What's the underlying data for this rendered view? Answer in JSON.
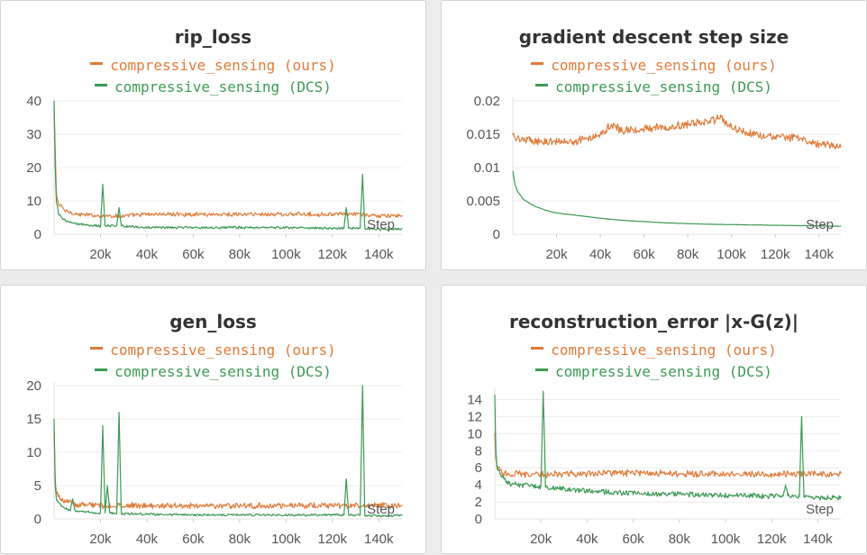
{
  "colors": {
    "ours": "#e07b39",
    "dcs": "#3c9a55",
    "grid": "#ececec",
    "axis": "#e0e0e0"
  },
  "panels": [
    {
      "title": "rip_loss",
      "legend": [
        "compressive_sensing (ours)",
        "compressive_sensing (DCS)"
      ]
    },
    {
      "title": "gradient descent step size",
      "legend": [
        "compressive_sensing (ours)",
        "compressive_sensing (DCS)"
      ]
    },
    {
      "title": "gen_loss",
      "legend": [
        "compressive_sensing (ours)",
        "compressive_sensing (DCS)"
      ]
    },
    {
      "title": "reconstruction_error |x-G(z)|",
      "legend": [
        "compressive_sensing (ours)",
        "compressive_sensing (DCS)"
      ]
    }
  ],
  "chart_data": [
    {
      "type": "line",
      "title": "rip_loss",
      "xlabel": "Step",
      "x_tick_labels": [
        "20k",
        "40k",
        "60k",
        "80k",
        "100k",
        "120k",
        "140k"
      ],
      "x_ticks": [
        20000,
        40000,
        60000,
        80000,
        100000,
        120000,
        140000
      ],
      "y_tick_labels": [
        "0",
        "10",
        "20",
        "30",
        "40"
      ],
      "y_ticks": [
        0,
        10,
        20,
        30,
        40
      ],
      "xlim": [
        0,
        150000
      ],
      "ylim": [
        0,
        40
      ],
      "grid": true,
      "legend_position": "top",
      "series": [
        {
          "name": "compressive_sensing (ours)",
          "x": [
            0,
            1000,
            2000,
            5000,
            10000,
            20000,
            30000,
            40000,
            50000,
            60000,
            70000,
            80000,
            90000,
            100000,
            110000,
            120000,
            130000,
            140000,
            150000
          ],
          "y": [
            38,
            12,
            9,
            7,
            6,
            5.5,
            5.5,
            6,
            6,
            6,
            6,
            6,
            6,
            6,
            6,
            6,
            6,
            5.5,
            5.5
          ],
          "noise": 0.7
        },
        {
          "name": "compressive_sensing (DCS)",
          "x": [
            0,
            500,
            1000,
            2000,
            5000,
            10000,
            20000,
            21000,
            22000,
            27000,
            28000,
            29000,
            40000,
            60000,
            80000,
            100000,
            120000,
            125000,
            126000,
            127000,
            132000,
            133000,
            134000,
            140000,
            150000
          ],
          "y": [
            40,
            20,
            10,
            6,
            4,
            3,
            2.5,
            15,
            2.5,
            2.5,
            8,
            2.5,
            2,
            2,
            2,
            2,
            1.8,
            1.8,
            8,
            1.8,
            1.8,
            18,
            1.8,
            1.6,
            1.5
          ],
          "noise": 0.4
        }
      ]
    },
    {
      "type": "line",
      "title": "gradient descent step size",
      "xlabel": "Step",
      "x_tick_labels": [
        "20k",
        "40k",
        "60k",
        "80k",
        "100k",
        "120k",
        "140k"
      ],
      "x_ticks": [
        20000,
        40000,
        60000,
        80000,
        100000,
        120000,
        140000
      ],
      "y_tick_labels": [
        "0",
        "0.005",
        "0.01",
        "0.015",
        "0.02"
      ],
      "y_ticks": [
        0,
        0.005,
        0.01,
        0.015,
        0.02
      ],
      "xlim": [
        0,
        150000
      ],
      "ylim": [
        0,
        0.02
      ],
      "grid": true,
      "legend_position": "top",
      "series": [
        {
          "name": "compressive_sensing (ours)",
          "x": [
            0,
            1000,
            5000,
            10000,
            20000,
            30000,
            40000,
            45000,
            50000,
            60000,
            70000,
            80000,
            90000,
            95000,
            100000,
            110000,
            120000,
            130000,
            140000,
            150000
          ],
          "y": [
            0.015,
            0.0145,
            0.0142,
            0.014,
            0.0138,
            0.014,
            0.015,
            0.0165,
            0.0155,
            0.0158,
            0.016,
            0.0165,
            0.017,
            0.0175,
            0.016,
            0.015,
            0.0145,
            0.0145,
            0.0135,
            0.013
          ],
          "noise": 0.0007
        },
        {
          "name": "compressive_sensing (DCS)",
          "x": [
            0,
            1000,
            2000,
            5000,
            10000,
            15000,
            20000,
            30000,
            40000,
            50000,
            60000,
            70000,
            80000,
            90000,
            100000,
            110000,
            120000,
            130000,
            140000,
            150000
          ],
          "y": [
            0.0095,
            0.0075,
            0.0065,
            0.0052,
            0.0042,
            0.0036,
            0.0032,
            0.0028,
            0.0024,
            0.0021,
            0.0019,
            0.0017,
            0.0016,
            0.0015,
            0.00145,
            0.0014,
            0.00135,
            0.0013,
            0.00125,
            0.0012
          ],
          "noise": 3e-05
        }
      ]
    },
    {
      "type": "line",
      "title": "gen_loss",
      "xlabel": "Step",
      "x_tick_labels": [
        "20k",
        "40k",
        "60k",
        "80k",
        "100k",
        "120k",
        "140k"
      ],
      "x_ticks": [
        20000,
        40000,
        60000,
        80000,
        100000,
        120000,
        140000
      ],
      "y_tick_labels": [
        "0",
        "5",
        "10",
        "15",
        "20"
      ],
      "y_ticks": [
        0,
        5,
        10,
        15,
        20
      ],
      "xlim": [
        0,
        150000
      ],
      "ylim": [
        0,
        20
      ],
      "grid": true,
      "legend_position": "top",
      "series": [
        {
          "name": "compressive_sensing (ours)",
          "x": [
            0,
            500,
            1000,
            3000,
            6000,
            10000,
            20000,
            40000,
            60000,
            80000,
            100000,
            120000,
            140000,
            150000
          ],
          "y": [
            13,
            6,
            4,
            3,
            2.5,
            2.2,
            2,
            2,
            2,
            2,
            2,
            2,
            2,
            2
          ],
          "noise": 0.5
        },
        {
          "name": "compressive_sensing (DCS)",
          "x": [
            0,
            500,
            1000,
            3000,
            7000,
            8000,
            9000,
            15000,
            20000,
            21000,
            22000,
            23000,
            24000,
            27000,
            28000,
            29000,
            40000,
            60000,
            80000,
            100000,
            120000,
            125000,
            126000,
            127000,
            132000,
            133000,
            134000,
            140000,
            150000
          ],
          "y": [
            15,
            5,
            3,
            2,
            1.2,
            3,
            1.2,
            1,
            0.9,
            14,
            0.9,
            5,
            0.9,
            0.8,
            16,
            0.8,
            0.7,
            0.6,
            0.6,
            0.6,
            0.6,
            0.6,
            6,
            0.6,
            0.6,
            20,
            0.5,
            0.5,
            0.5
          ],
          "noise": 0.2
        }
      ]
    },
    {
      "type": "line",
      "title": "reconstruction_error |x-G(z)|",
      "xlabel": "Step",
      "x_tick_labels": [
        "20k",
        "40k",
        "60k",
        "80k",
        "100k",
        "120k",
        "140k"
      ],
      "x_ticks": [
        20000,
        40000,
        60000,
        80000,
        100000,
        120000,
        140000
      ],
      "y_tick_labels": [
        "0",
        "2",
        "4",
        "6",
        "8",
        "10",
        "12",
        "14"
      ],
      "y_ticks": [
        0,
        2,
        4,
        6,
        8,
        10,
        12,
        14
      ],
      "xlim": [
        0,
        150000
      ],
      "ylim": [
        0,
        15
      ],
      "grid": true,
      "legend_position": "top",
      "series": [
        {
          "name": "compressive_sensing (ours)",
          "x": [
            0,
            500,
            1000,
            3000,
            6000,
            10000,
            20000,
            40000,
            60000,
            80000,
            100000,
            120000,
            140000,
            150000
          ],
          "y": [
            10,
            7,
            6,
            5.5,
            5.3,
            5.3,
            5.2,
            5.3,
            5.4,
            5.3,
            5.3,
            5.2,
            5.3,
            5.3
          ],
          "noise": 0.45
        },
        {
          "name": "compressive_sensing (DCS)",
          "x": [
            0,
            500,
            1000,
            3000,
            6000,
            10000,
            20000,
            21000,
            22000,
            40000,
            60000,
            80000,
            100000,
            120000,
            125000,
            126000,
            127000,
            132000,
            133000,
            134000,
            140000,
            150000
          ],
          "y": [
            14.5,
            8,
            6,
            5,
            4.2,
            4,
            3.8,
            15,
            3.7,
            3.3,
            3,
            2.9,
            2.8,
            2.7,
            2.7,
            4,
            2.7,
            2.6,
            12,
            2.6,
            2.5,
            2.5
          ],
          "noise": 0.35
        }
      ]
    }
  ]
}
